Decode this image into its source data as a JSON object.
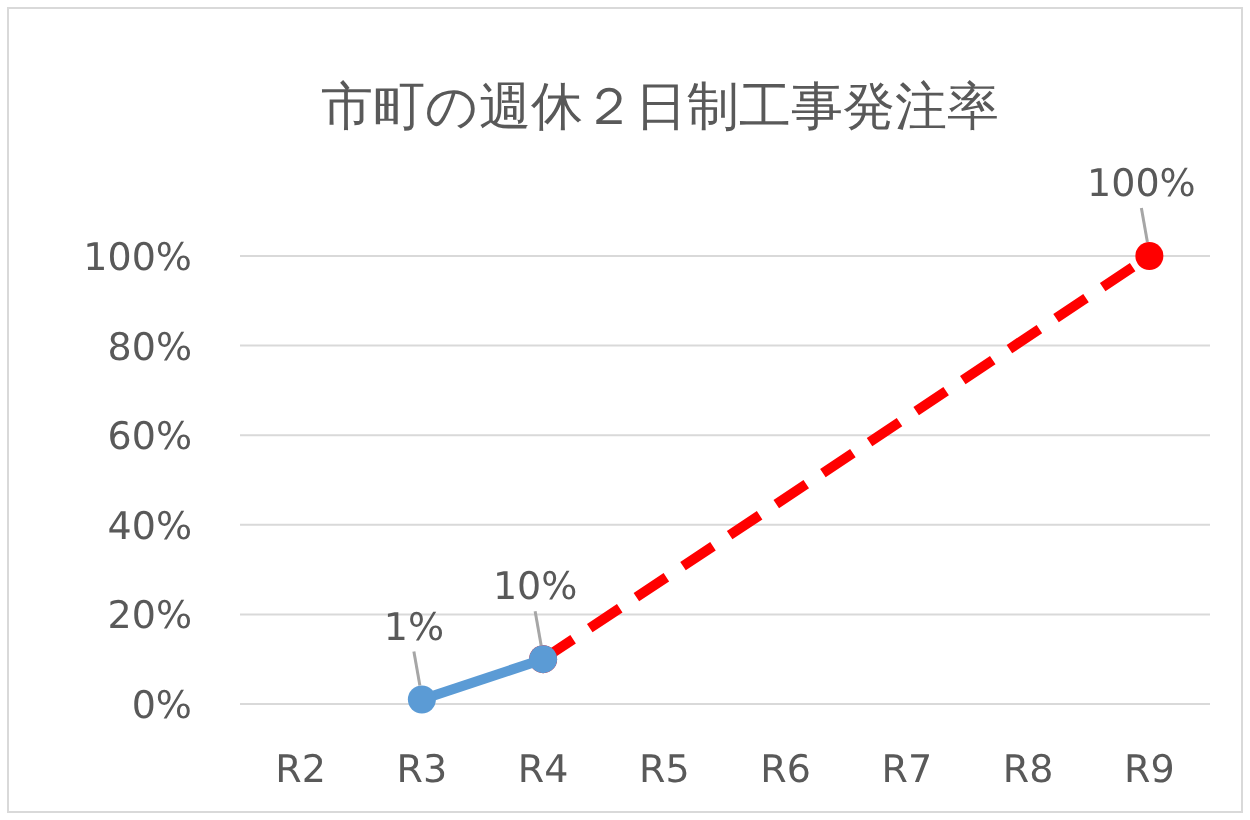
{
  "chart_data": {
    "type": "line",
    "title": "市町の週休２日制工事発注率",
    "categories": [
      "R2",
      "R3",
      "R4",
      "R5",
      "R6",
      "R7",
      "R8",
      "R9"
    ],
    "series": [
      {
        "x": [
          "R4",
          "R9"
        ],
        "values": [
          10,
          100
        ],
        "color": "#ff0000",
        "line_style": "dashed",
        "marker": "circle",
        "value_labels": [
          null,
          "100%"
        ]
      },
      {
        "x": [
          "R3",
          "R4"
        ],
        "values": [
          1,
          10
        ],
        "color": "#5b9bd5",
        "line_style": "solid",
        "marker": "circle",
        "value_labels": [
          "1%",
          "10%"
        ]
      }
    ],
    "ylim": [
      0,
      100
    ],
    "yticks": [
      {
        "value": 0,
        "label": "0%"
      },
      {
        "value": 20,
        "label": "20%"
      },
      {
        "value": 40,
        "label": "40%"
      },
      {
        "value": 60,
        "label": "60%"
      },
      {
        "value": 80,
        "label": "80%"
      },
      {
        "value": 100,
        "label": "100%"
      }
    ],
    "grid": "y"
  }
}
